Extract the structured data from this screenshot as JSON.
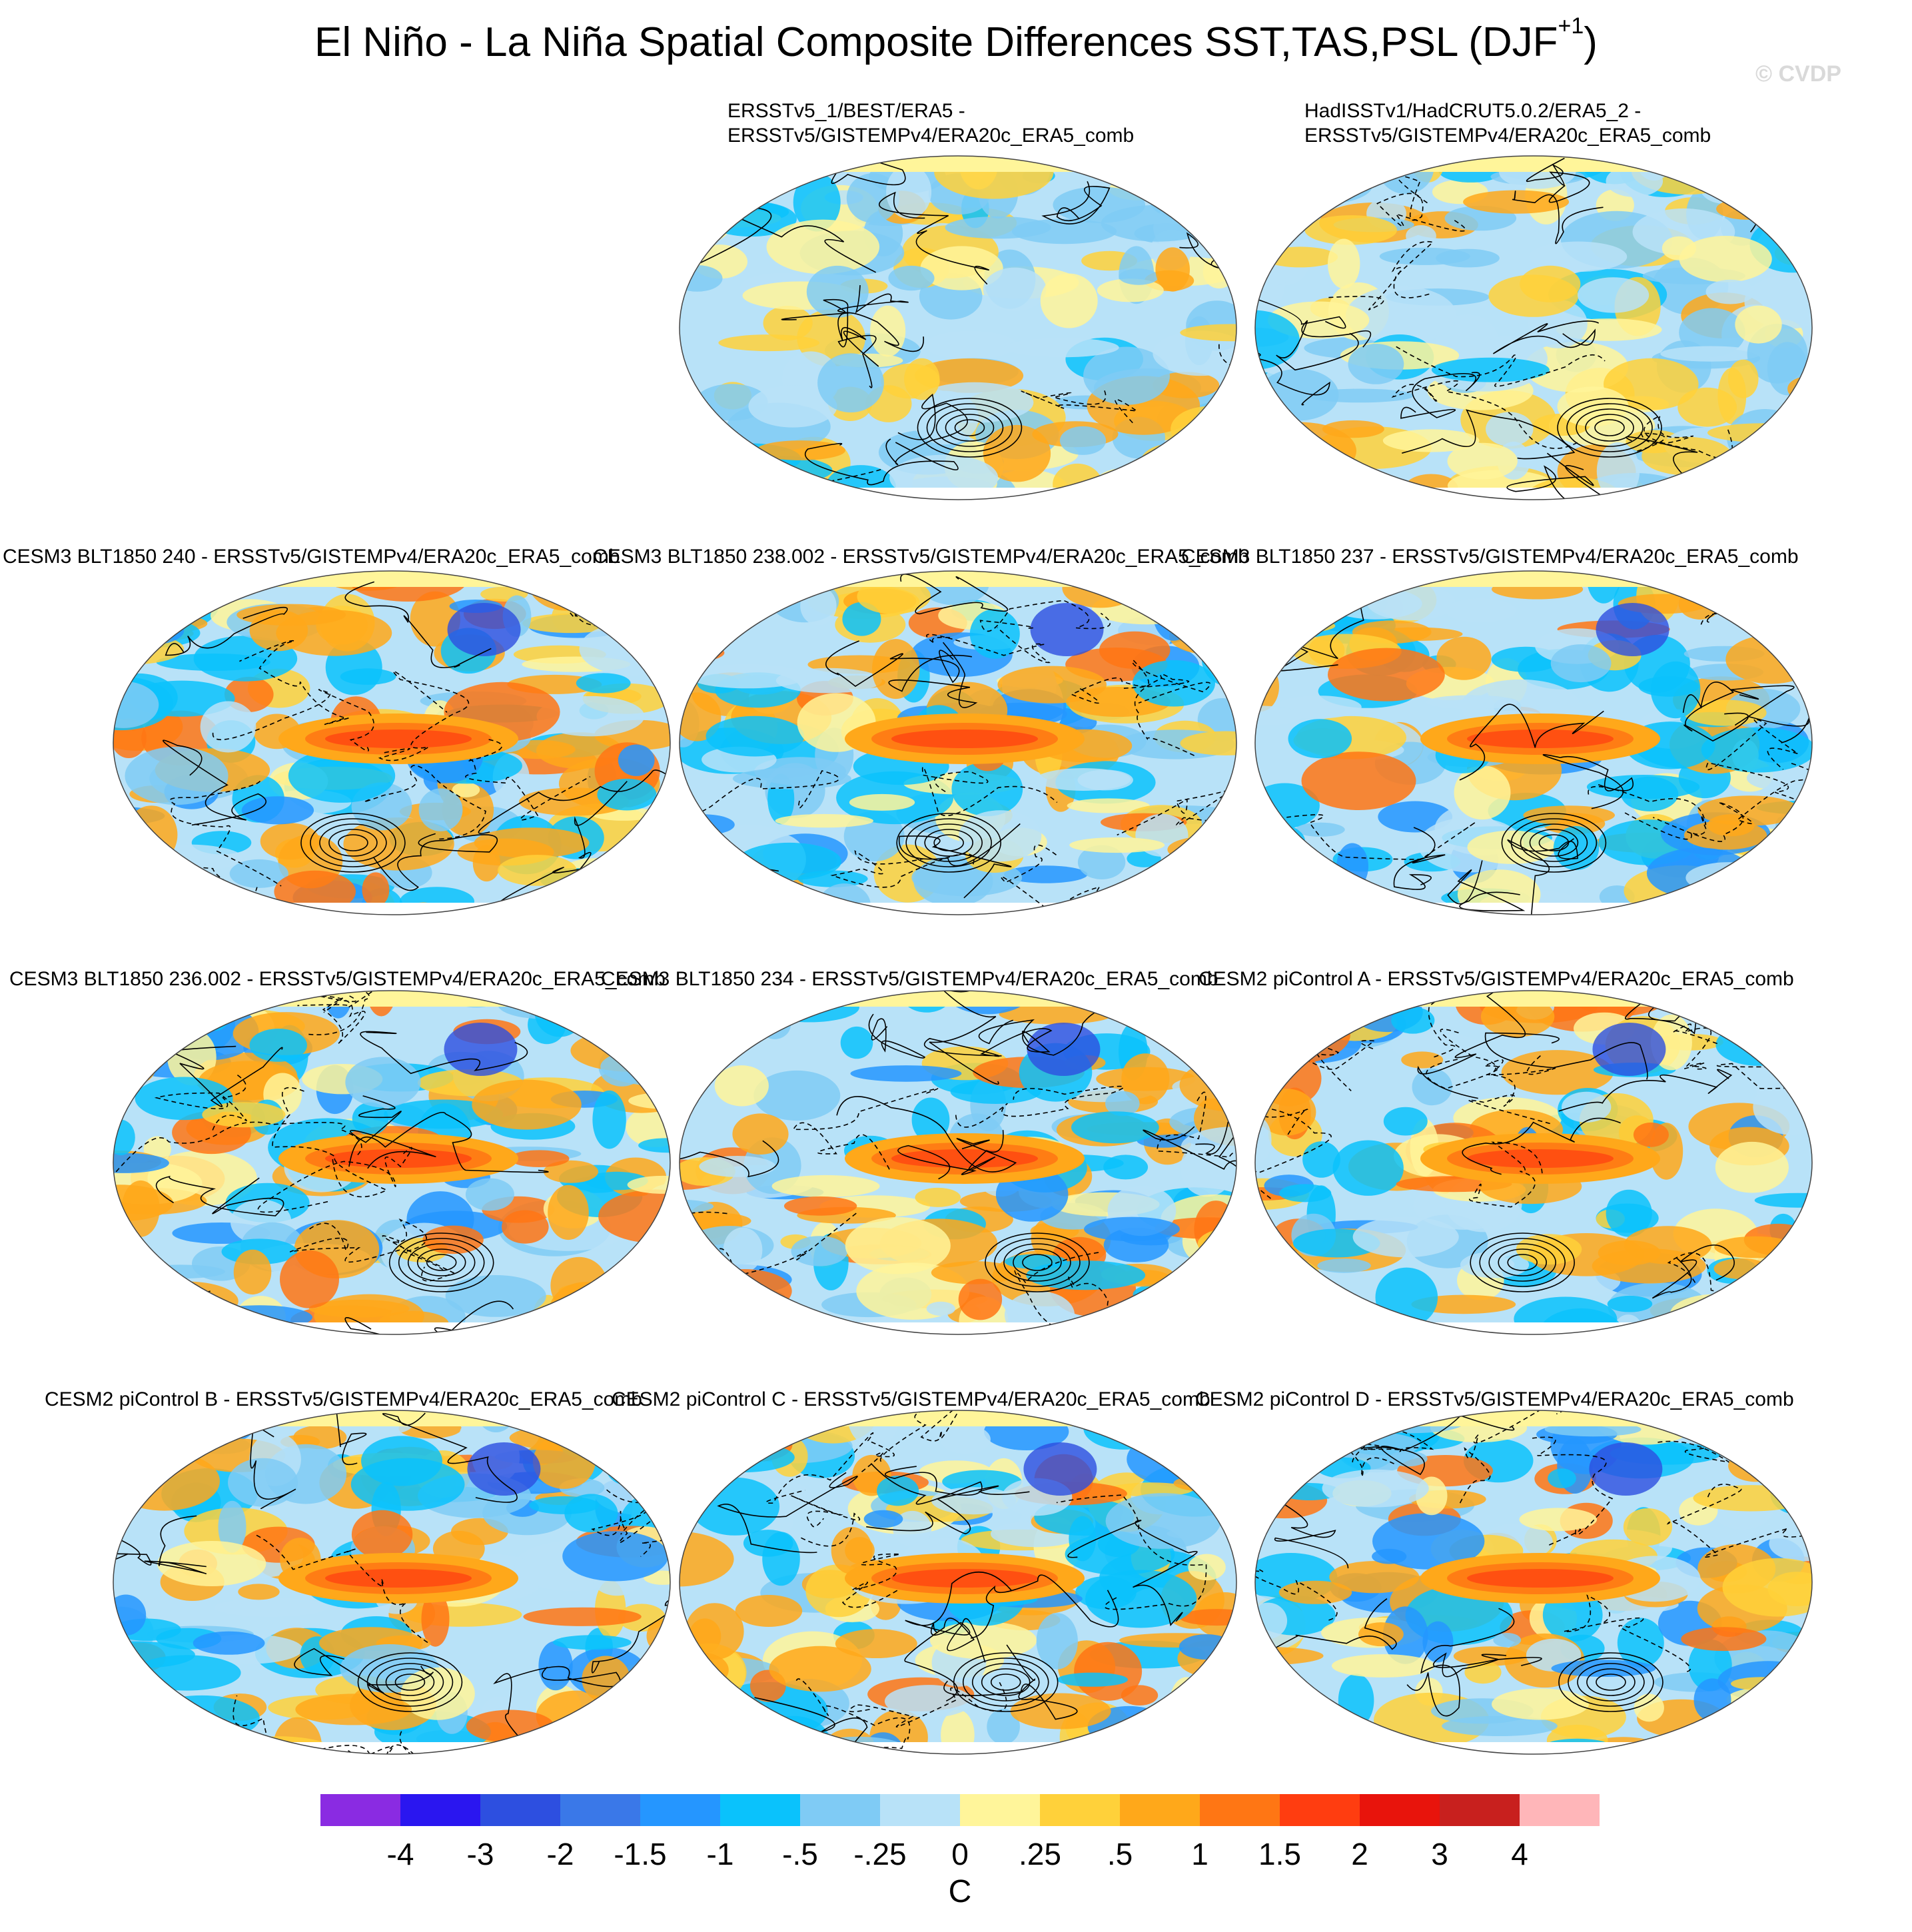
{
  "figure": {
    "title_main": "El Niño - La Niña Spatial Composite Differences SST,TAS,PSL (DJF",
    "title_sup": "+1",
    "title_close": ")",
    "watermark": "© CVDP"
  },
  "chart_data": {
    "type": "heatmap",
    "description_fields": "filled contours of temperature composite difference with sea-level-pressure contour lines (solid positive, dashed negative)",
    "panels": [
      {
        "id": "obs1",
        "title_lines": [
          "ERSSTv5_1/BEST/ERA5 -",
          "ERSSTv5/GISTEMPv4/ERA20c_ERA5_comb"
        ]
      },
      {
        "id": "obs2",
        "title_lines": [
          "HadISSTv1/HadCRUT5.0.2/ERA5_2 -",
          "ERSSTv5/GISTEMPv4/ERA20c_ERA5_comb"
        ]
      },
      {
        "id": "m240",
        "title_lines": [
          "CESM3 BLT1850 240 - ERSSTv5/GISTEMPv4/ERA20c_ERA5_comb"
        ]
      },
      {
        "id": "m238",
        "title_lines": [
          "CESM3 BLT1850 238.002 - ERSSTv5/GISTEMPv4/ERA20c_ERA5_comb"
        ]
      },
      {
        "id": "m237",
        "title_lines": [
          "CESM3 BLT1850 237 - ERSSTv5/GISTEMPv4/ERA20c_ERA5_comb"
        ]
      },
      {
        "id": "m236",
        "title_lines": [
          "CESM3 BLT1850 236.002 - ERSSTv5/GISTEMPv4/ERA20c_ERA5_comb"
        ]
      },
      {
        "id": "m234",
        "title_lines": [
          "CESM3 BLT1850 234 - ERSSTv5/GISTEMPv4/ERA20c_ERA5_comb"
        ]
      },
      {
        "id": "pcA",
        "title_lines": [
          "CESM2 piControl A - ERSSTv5/GISTEMPv4/ERA20c_ERA5_comb"
        ]
      },
      {
        "id": "pcB",
        "title_lines": [
          "CESM2 piControl B - ERSSTv5/GISTEMPv4/ERA20c_ERA5_comb"
        ]
      },
      {
        "id": "pcC",
        "title_lines": [
          "CESM2 piControl C - ERSSTv5/GISTEMPv4/ERA20c_ERA5_comb"
        ]
      },
      {
        "id": "pcD",
        "title_lines": [
          "CESM2 piControl D - ERSSTv5/GISTEMPv4/ERA20c_ERA5_comb"
        ]
      }
    ],
    "colorbar": {
      "label": "C",
      "levels": [
        "-4",
        "-3",
        "-2",
        "-1.5",
        "-1",
        "-.5",
        "-.25",
        "0",
        ".25",
        ".5",
        "1",
        "1.5",
        "2",
        "3",
        "4"
      ],
      "colors": [
        "#8a2be2",
        "#2a16f0",
        "#2d4fe0",
        "#3a78e8",
        "#2596ff",
        "#0ac2fc",
        "#7fcbf5",
        "#b8e2f8",
        "#fff59a",
        "#ffd13a",
        "#ffa81a",
        "#ff7614",
        "#ff3d10",
        "#e8140c",
        "#c8201e",
        "#ffb6b9"
      ]
    }
  }
}
